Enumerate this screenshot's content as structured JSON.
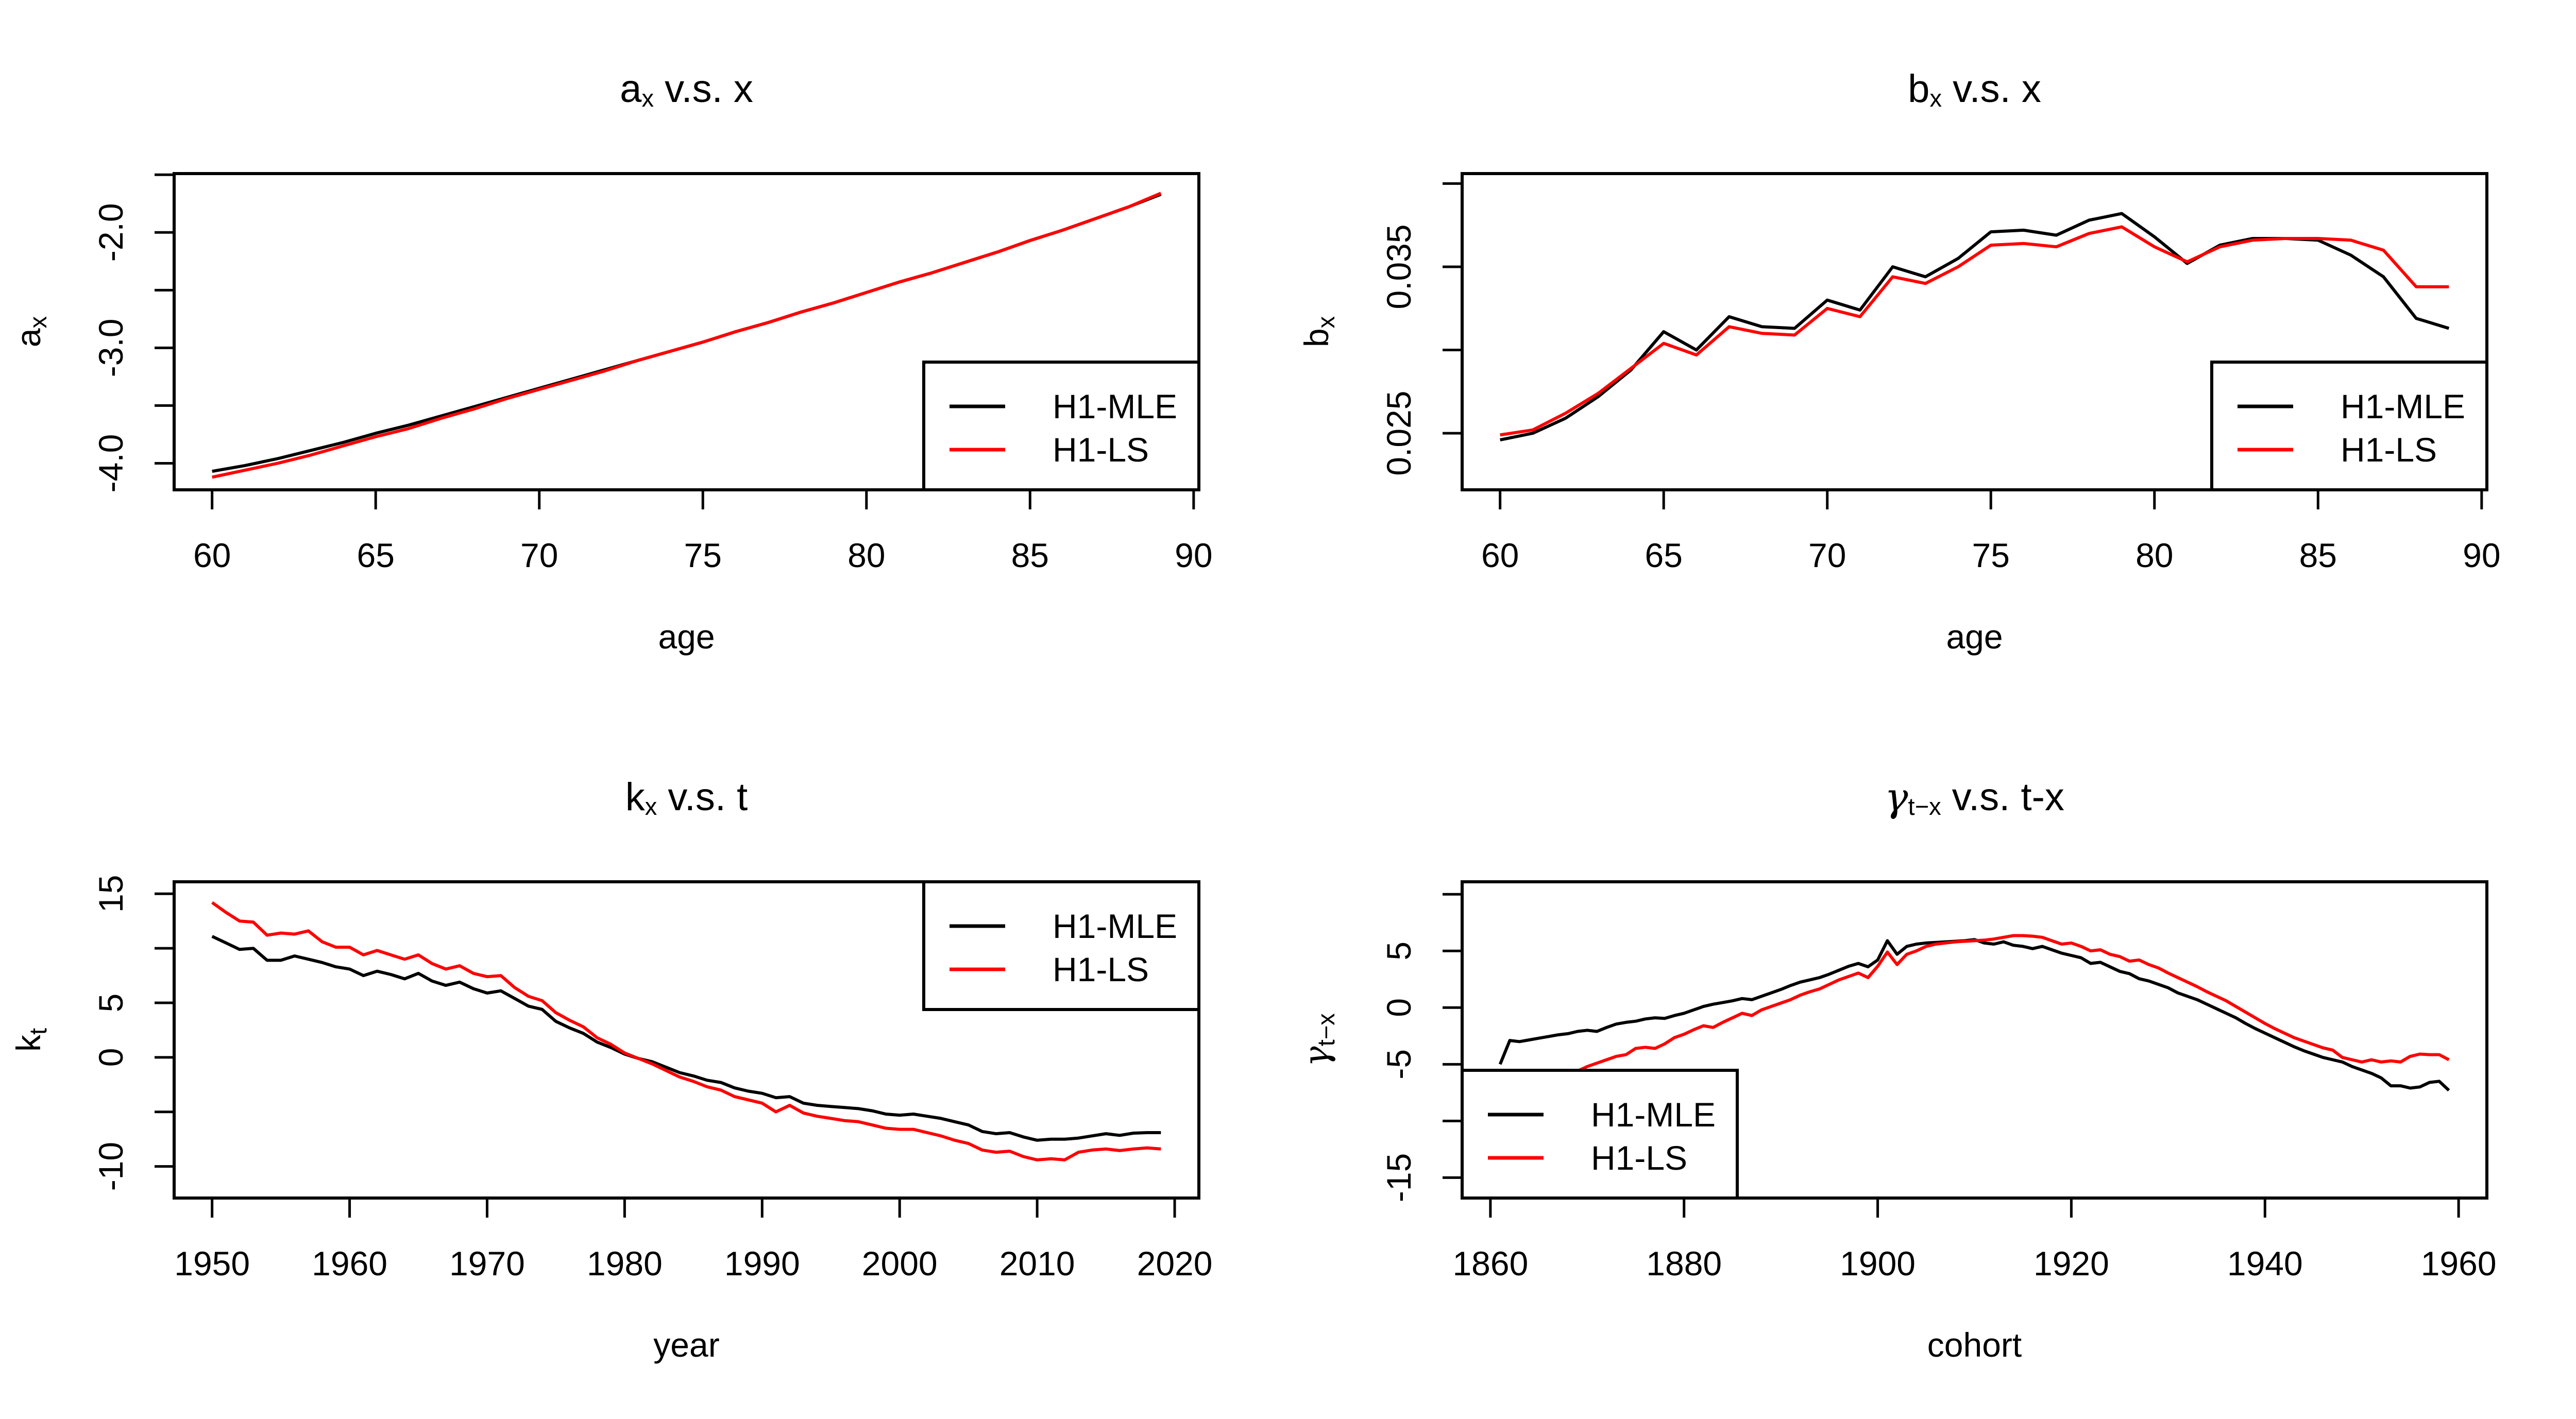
{
  "figure": {
    "background": "#ffffff",
    "foreground": "#000000",
    "series_colors": {
      "h1_mle": "#000000",
      "h1_ls": "#ff0000"
    },
    "legend_labels": [
      "H1-MLE",
      "H1-LS"
    ]
  },
  "chart_data": [
    {
      "type": "line",
      "panel": "top-left",
      "title_segments": [
        {
          "t": "a"
        },
        {
          "t": "x",
          "sub": true
        },
        {
          "t": " v.s. x"
        }
      ],
      "xlabel": "age",
      "ylabel_segments": [
        {
          "t": "a"
        },
        {
          "t": "x",
          "sub": true
        }
      ],
      "xlim": [
        58.84,
        90.16
      ],
      "ylim": [
        -4.23,
        -1.49
      ],
      "xticks": [
        {
          "v": 60,
          "label": "60"
        },
        {
          "v": 65,
          "label": "65"
        },
        {
          "v": 70,
          "label": "70"
        },
        {
          "v": 75,
          "label": "75"
        },
        {
          "v": 80,
          "label": "80"
        },
        {
          "v": 85,
          "label": "85"
        },
        {
          "v": 90,
          "label": "90"
        }
      ],
      "yticks": [
        {
          "v": -4.0,
          "label": "-4.0"
        },
        {
          "v": -3.5,
          "label": ""
        },
        {
          "v": -3.0,
          "label": "-3.0"
        },
        {
          "v": -2.5,
          "label": ""
        },
        {
          "v": -2.0,
          "label": "-2.0"
        },
        {
          "v": -1.5,
          "label": ""
        }
      ],
      "legend_position": "bottomright",
      "x": [
        60,
        61,
        62,
        63,
        64,
        65,
        66,
        67,
        68,
        69,
        70,
        71,
        72,
        73,
        74,
        75,
        76,
        77,
        78,
        79,
        80,
        81,
        82,
        83,
        84,
        85,
        86,
        87,
        88,
        89
      ],
      "series": [
        {
          "name": "H1-MLE",
          "color": "#000000",
          "values": [
            -4.07,
            -4.02,
            -3.96,
            -3.89,
            -3.82,
            -3.74,
            -3.67,
            -3.59,
            -3.51,
            -3.43,
            -3.35,
            -3.27,
            -3.19,
            -3.11,
            -3.03,
            -2.95,
            -2.86,
            -2.78,
            -2.69,
            -2.61,
            -2.52,
            -2.43,
            -2.35,
            -2.26,
            -2.17,
            -2.07,
            -1.98,
            -1.88,
            -1.78,
            -1.67
          ]
        },
        {
          "name": "H1-LS",
          "color": "#ff0000",
          "values": [
            -4.12,
            -4.06,
            -4.0,
            -3.93,
            -3.85,
            -3.77,
            -3.7,
            -3.61,
            -3.53,
            -3.44,
            -3.36,
            -3.28,
            -3.2,
            -3.11,
            -3.03,
            -2.95,
            -2.86,
            -2.78,
            -2.69,
            -2.61,
            -2.52,
            -2.43,
            -2.35,
            -2.26,
            -2.17,
            -2.07,
            -1.98,
            -1.88,
            -1.78,
            -1.66
          ]
        }
      ]
    },
    {
      "type": "line",
      "panel": "top-right",
      "title_segments": [
        {
          "t": "b"
        },
        {
          "t": "x",
          "sub": true
        },
        {
          "t": " v.s. x"
        }
      ],
      "xlabel": "age",
      "ylabel_segments": [
        {
          "t": "b"
        },
        {
          "t": "x",
          "sub": true
        }
      ],
      "xlim": [
        58.84,
        90.16
      ],
      "ylim": [
        0.0216,
        0.0406
      ],
      "xticks": [
        {
          "v": 60,
          "label": "60"
        },
        {
          "v": 65,
          "label": "65"
        },
        {
          "v": 70,
          "label": "70"
        },
        {
          "v": 75,
          "label": "75"
        },
        {
          "v": 80,
          "label": "80"
        },
        {
          "v": 85,
          "label": "85"
        },
        {
          "v": 90,
          "label": "90"
        }
      ],
      "yticks": [
        {
          "v": 0.025,
          "label": "0.025"
        },
        {
          "v": 0.03,
          "label": ""
        },
        {
          "v": 0.035,
          "label": "0.035"
        },
        {
          "v": 0.04,
          "label": ""
        }
      ],
      "legend_position": "bottomright",
      "x": [
        60,
        61,
        62,
        63,
        64,
        65,
        66,
        67,
        68,
        69,
        70,
        71,
        72,
        73,
        74,
        75,
        76,
        77,
        78,
        79,
        80,
        81,
        82,
        83,
        84,
        85,
        86,
        87,
        88,
        89
      ],
      "series": [
        {
          "name": "H1-MLE",
          "color": "#000000",
          "values": [
            0.0246,
            0.025,
            0.0259,
            0.0272,
            0.0288,
            0.0311,
            0.03,
            0.032,
            0.0314,
            0.0313,
            0.033,
            0.0324,
            0.035,
            0.0344,
            0.0355,
            0.0371,
            0.0372,
            0.0369,
            0.0378,
            0.0382,
            0.0368,
            0.0352,
            0.0363,
            0.0367,
            0.0367,
            0.0366,
            0.0357,
            0.0344,
            0.0319,
            0.0313
          ]
        },
        {
          "name": "H1-LS",
          "color": "#ff0000",
          "values": [
            0.0249,
            0.0252,
            0.0262,
            0.0274,
            0.0289,
            0.0304,
            0.0297,
            0.0314,
            0.031,
            0.0309,
            0.0325,
            0.032,
            0.0344,
            0.034,
            0.035,
            0.0363,
            0.0364,
            0.0362,
            0.037,
            0.0374,
            0.0362,
            0.0353,
            0.0362,
            0.0366,
            0.0367,
            0.0367,
            0.0366,
            0.036,
            0.0338,
            0.0338
          ]
        }
      ]
    },
    {
      "type": "line",
      "panel": "bottom-left",
      "title_segments": [
        {
          "t": "k"
        },
        {
          "t": "x",
          "sub": true
        },
        {
          "t": " v.s. t"
        }
      ],
      "xlabel": "year",
      "ylabel_segments": [
        {
          "t": "k"
        },
        {
          "t": "t",
          "sub": true
        }
      ],
      "xlim": [
        1947.24,
        2021.76
      ],
      "ylim": [
        -12.9,
        16.1
      ],
      "xticks": [
        {
          "v": 1950,
          "label": "1950"
        },
        {
          "v": 1960,
          "label": "1960"
        },
        {
          "v": 1970,
          "label": "1970"
        },
        {
          "v": 1980,
          "label": "1980"
        },
        {
          "v": 1990,
          "label": "1990"
        },
        {
          "v": 2000,
          "label": "2000"
        },
        {
          "v": 2010,
          "label": "2010"
        },
        {
          "v": 2020,
          "label": "2020"
        }
      ],
      "yticks": [
        {
          "v": -10,
          "label": "-10"
        },
        {
          "v": -5,
          "label": ""
        },
        {
          "v": 0,
          "label": "0"
        },
        {
          "v": 5,
          "label": "5"
        },
        {
          "v": 10,
          "label": ""
        },
        {
          "v": 15,
          "label": "15"
        }
      ],
      "legend_position": "topright",
      "x": [
        1950,
        1951,
        1952,
        1953,
        1954,
        1955,
        1956,
        1957,
        1958,
        1959,
        1960,
        1961,
        1962,
        1963,
        1964,
        1965,
        1966,
        1967,
        1968,
        1969,
        1970,
        1971,
        1972,
        1973,
        1974,
        1975,
        1976,
        1977,
        1978,
        1979,
        1980,
        1981,
        1982,
        1983,
        1984,
        1985,
        1986,
        1987,
        1988,
        1989,
        1990,
        1991,
        1992,
        1993,
        1994,
        1995,
        1996,
        1997,
        1998,
        1999,
        2000,
        2001,
        2002,
        2003,
        2004,
        2005,
        2006,
        2007,
        2008,
        2009,
        2010,
        2011,
        2012,
        2013,
        2014,
        2015,
        2016,
        2017,
        2018,
        2019
      ],
      "series": [
        {
          "name": "H1-MLE",
          "color": "#000000",
          "values": [
            11.1,
            10.5,
            9.9,
            10.0,
            8.9,
            8.9,
            9.3,
            9.0,
            8.7,
            8.3,
            8.1,
            7.5,
            7.9,
            7.6,
            7.2,
            7.7,
            7.0,
            6.6,
            6.9,
            6.3,
            5.9,
            6.1,
            5.4,
            4.7,
            4.4,
            3.3,
            2.7,
            2.2,
            1.4,
            0.9,
            0.3,
            -0.1,
            -0.4,
            -0.9,
            -1.4,
            -1.7,
            -2.1,
            -2.3,
            -2.8,
            -3.1,
            -3.3,
            -3.7,
            -3.6,
            -4.2,
            -4.4,
            -4.5,
            -4.6,
            -4.7,
            -4.9,
            -5.2,
            -5.3,
            -5.2,
            -5.4,
            -5.6,
            -5.9,
            -6.2,
            -6.8,
            -7.0,
            -6.9,
            -7.3,
            -7.6,
            -7.5,
            -7.5,
            -7.4,
            -7.2,
            -7.0,
            -7.15,
            -6.95,
            -6.9,
            -6.9
          ]
        },
        {
          "name": "H1-LS",
          "color": "#ff0000",
          "values": [
            14.2,
            13.3,
            12.5,
            12.4,
            11.2,
            11.4,
            11.3,
            11.6,
            10.6,
            10.1,
            10.1,
            9.4,
            9.8,
            9.4,
            9.0,
            9.4,
            8.6,
            8.1,
            8.4,
            7.7,
            7.4,
            7.5,
            6.4,
            5.6,
            5.2,
            4.1,
            3.4,
            2.8,
            1.8,
            1.2,
            0.4,
            -0.1,
            -0.6,
            -1.2,
            -1.8,
            -2.2,
            -2.7,
            -3.0,
            -3.6,
            -3.9,
            -4.2,
            -5.0,
            -4.4,
            -5.1,
            -5.4,
            -5.6,
            -5.8,
            -5.9,
            -6.2,
            -6.5,
            -6.6,
            -6.6,
            -6.9,
            -7.2,
            -7.6,
            -7.9,
            -8.5,
            -8.7,
            -8.6,
            -9.1,
            -9.4,
            -9.3,
            -9.4,
            -8.7,
            -8.5,
            -8.4,
            -8.55,
            -8.4,
            -8.3,
            -8.4
          ]
        }
      ]
    },
    {
      "type": "line",
      "panel": "bottom-right",
      "title_segments": [
        {
          "t": "γ",
          "greek": true
        },
        {
          "t": "t−x",
          "sub": true
        },
        {
          "t": " v.s. t-x"
        }
      ],
      "xlabel": "cohort",
      "ylabel_segments": [
        {
          "t": "γ",
          "greek": true
        },
        {
          "t": "t−x",
          "sub": true
        }
      ],
      "xlim": [
        1857.08,
        1962.92
      ],
      "ylim": [
        -16.8,
        11.1
      ],
      "xticks": [
        {
          "v": 1860,
          "label": "1860"
        },
        {
          "v": 1880,
          "label": "1880"
        },
        {
          "v": 1900,
          "label": "1900"
        },
        {
          "v": 1920,
          "label": "1920"
        },
        {
          "v": 1940,
          "label": "1940"
        },
        {
          "v": 1960,
          "label": "1960"
        }
      ],
      "yticks": [
        {
          "v": -15,
          "label": "-15"
        },
        {
          "v": -10,
          "label": ""
        },
        {
          "v": -5,
          "label": "-5"
        },
        {
          "v": 0,
          "label": "0"
        },
        {
          "v": 5,
          "label": "5"
        },
        {
          "v": 10,
          "label": ""
        }
      ],
      "legend_position": "bottomleft",
      "x": [
        1861,
        1862,
        1863,
        1864,
        1865,
        1866,
        1867,
        1868,
        1869,
        1870,
        1871,
        1872,
        1873,
        1874,
        1875,
        1876,
        1877,
        1878,
        1879,
        1880,
        1881,
        1882,
        1883,
        1884,
        1885,
        1886,
        1887,
        1888,
        1889,
        1890,
        1891,
        1892,
        1893,
        1894,
        1895,
        1896,
        1897,
        1898,
        1899,
        1900,
        1901,
        1902,
        1903,
        1904,
        1905,
        1906,
        1907,
        1908,
        1909,
        1910,
        1911,
        1912,
        1913,
        1914,
        1915,
        1916,
        1917,
        1918,
        1919,
        1920,
        1921,
        1922,
        1923,
        1924,
        1925,
        1926,
        1927,
        1928,
        1929,
        1930,
        1931,
        1932,
        1933,
        1934,
        1935,
        1936,
        1937,
        1938,
        1939,
        1940,
        1941,
        1942,
        1943,
        1944,
        1945,
        1946,
        1947,
        1948,
        1949,
        1950,
        1951,
        1952,
        1953,
        1954,
        1955,
        1956,
        1957,
        1958,
        1959
      ],
      "series": [
        {
          "name": "H1-MLE",
          "color": "#000000",
          "values": [
            -5.0,
            -2.9,
            -3.0,
            -2.85,
            -2.7,
            -2.55,
            -2.4,
            -2.3,
            -2.1,
            -2.0,
            -2.1,
            -1.75,
            -1.45,
            -1.3,
            -1.2,
            -1.0,
            -0.9,
            -0.95,
            -0.7,
            -0.5,
            -0.2,
            0.1,
            0.3,
            0.45,
            0.6,
            0.8,
            0.7,
            1.0,
            1.3,
            1.6,
            1.95,
            2.25,
            2.45,
            2.65,
            2.95,
            3.3,
            3.65,
            3.9,
            3.6,
            4.2,
            5.9,
            4.7,
            5.4,
            5.6,
            5.7,
            5.75,
            5.8,
            5.85,
            5.9,
            6.0,
            5.7,
            5.6,
            5.8,
            5.5,
            5.4,
            5.2,
            5.4,
            5.1,
            4.8,
            4.6,
            4.4,
            3.9,
            4.0,
            3.6,
            3.2,
            3.0,
            2.55,
            2.35,
            2.05,
            1.75,
            1.3,
            1.0,
            0.7,
            0.3,
            -0.1,
            -0.5,
            -0.9,
            -1.4,
            -1.85,
            -2.25,
            -2.65,
            -3.05,
            -3.45,
            -3.8,
            -4.1,
            -4.4,
            -4.6,
            -4.8,
            -5.2,
            -5.5,
            -5.8,
            -6.2,
            -6.9,
            -6.9,
            -7.1,
            -7.0,
            -6.6,
            -6.5,
            -7.3
          ]
        },
        {
          "name": "H1-LS",
          "color": "#ff0000",
          "values": [
            -7.6,
            -7.3,
            -7.1,
            -6.9,
            -6.6,
            -6.35,
            -6.1,
            -5.9,
            -5.6,
            -5.2,
            -4.9,
            -4.6,
            -4.3,
            -4.15,
            -3.6,
            -3.5,
            -3.6,
            -3.2,
            -2.65,
            -2.35,
            -1.95,
            -1.6,
            -1.75,
            -1.3,
            -0.9,
            -0.5,
            -0.7,
            -0.2,
            0.1,
            0.4,
            0.7,
            1.1,
            1.4,
            1.65,
            2.05,
            2.45,
            2.75,
            3.05,
            2.65,
            3.65,
            4.9,
            3.8,
            4.7,
            5.0,
            5.4,
            5.6,
            5.7,
            5.8,
            5.85,
            5.9,
            5.95,
            6.05,
            6.2,
            6.35,
            6.35,
            6.3,
            6.2,
            5.9,
            5.6,
            5.7,
            5.4,
            5.0,
            5.1,
            4.7,
            4.5,
            4.1,
            4.2,
            3.8,
            3.5,
            3.05,
            2.65,
            2.25,
            1.85,
            1.4,
            1.0,
            0.6,
            0.1,
            -0.4,
            -0.9,
            -1.4,
            -1.85,
            -2.25,
            -2.65,
            -2.95,
            -3.25,
            -3.55,
            -3.75,
            -4.4,
            -4.6,
            -4.8,
            -4.6,
            -4.8,
            -4.7,
            -4.8,
            -4.3,
            -4.1,
            -4.15,
            -4.15,
            -4.6
          ]
        }
      ]
    }
  ]
}
